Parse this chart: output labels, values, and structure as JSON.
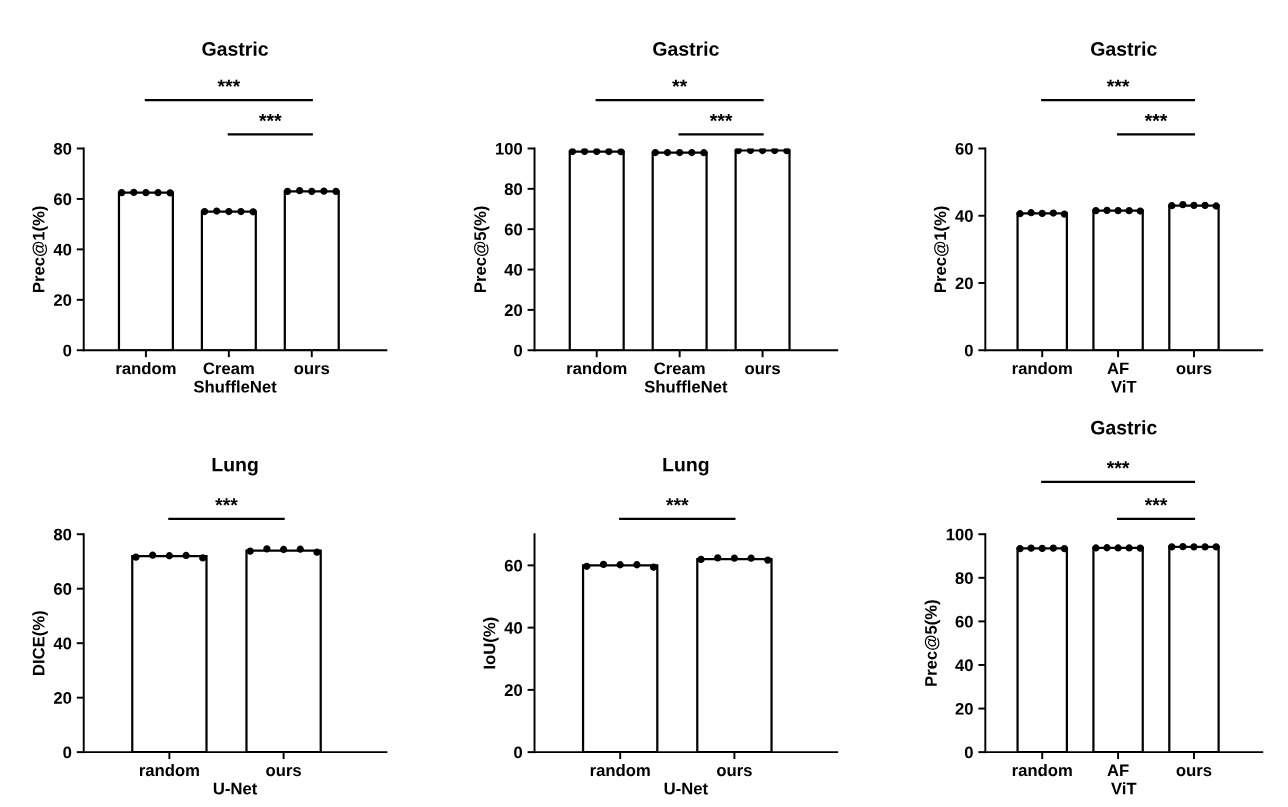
{
  "chart_data": [
    {
      "type": "bar",
      "title": "Gastric",
      "xlabel": "ShuffleNet",
      "ylabel": "Prec@1(%)",
      "categories": [
        "random",
        "Cream",
        "ours"
      ],
      "ylim": [
        0,
        80
      ],
      "yticks": [
        0,
        20,
        40,
        60,
        80
      ],
      "marker": "circle",
      "annotations": [
        "***",
        "***"
      ],
      "series": [
        {
          "color": "#ffffff",
          "values": [
            62.5,
            55,
            63
          ]
        },
        {
          "type": "scatter",
          "color": "#000000",
          "x": [
            "random",
            "random",
            "random",
            "random",
            "random",
            "Cream",
            "Cream",
            "Cream",
            "Cream",
            "Cream",
            "ours",
            "ours",
            "ours",
            "ours",
            "ours"
          ],
          "values": [
            62.5,
            62.6,
            62.5,
            62.5,
            62.4,
            55,
            55.2,
            55,
            55,
            54.9,
            63,
            63.3,
            63,
            63.1,
            63
          ]
        }
      ]
    },
    {
      "type": "bar",
      "title": "Gastric",
      "xlabel": "ShuffleNet",
      "ylabel": "Prec@5(%)",
      "categories": [
        "random",
        "Cream",
        "ours"
      ],
      "ylim": [
        0,
        100
      ],
      "yticks": [
        0,
        20,
        40,
        60,
        80,
        100
      ],
      "marker": "circle",
      "annotations": [
        "**",
        "***"
      ],
      "series": [
        {
          "color": "#ffffff",
          "values": [
            98.5,
            98,
            99
          ]
        },
        {
          "type": "scatter",
          "color": "#000000",
          "x": [
            "random",
            "random",
            "random",
            "random",
            "random",
            "Cream",
            "Cream",
            "Cream",
            "Cream",
            "Cream",
            "ours",
            "ours",
            "ours",
            "ours",
            "ours"
          ],
          "values": [
            98.5,
            98.6,
            98.5,
            98.5,
            98.4,
            98,
            98,
            98,
            98,
            97.9,
            99,
            99.1,
            99,
            99,
            98.9
          ]
        }
      ]
    },
    {
      "type": "bar",
      "title": "Gastric",
      "xlabel": "ViT",
      "ylabel": "Prec@1(%)",
      "categories": [
        "random",
        "AF",
        "ours"
      ],
      "ylim": [
        0,
        60
      ],
      "yticks": [
        0,
        20,
        40,
        60
      ],
      "marker": "circle",
      "annotations": [
        "***",
        "***"
      ],
      "series": [
        {
          "color": "#ffffff",
          "values": [
            40.7,
            41.5,
            43
          ]
        },
        {
          "type": "scatter",
          "color": "#000000",
          "x": [
            "random",
            "random",
            "random",
            "random",
            "random",
            "AF",
            "AF",
            "AF",
            "AF",
            "AF",
            "ours",
            "ours",
            "ours",
            "ours",
            "ours"
          ],
          "values": [
            40.6,
            40.9,
            40.7,
            40.8,
            40.5,
            41.5,
            41.6,
            41.5,
            41.5,
            41.4,
            43,
            43.3,
            43.1,
            43.1,
            42.9
          ]
        }
      ]
    },
    {
      "type": "bar",
      "title": "Lung",
      "xlabel": "U-Net",
      "ylabel": "DICE(%)",
      "categories": [
        "random",
        "ours"
      ],
      "ylim": [
        0,
        80
      ],
      "yticks": [
        0,
        20,
        40,
        60,
        80
      ],
      "marker": "circle",
      "annotations": [
        "***"
      ],
      "series": [
        {
          "color": "#ffffff",
          "values": [
            72,
            74
          ]
        },
        {
          "type": "scatter",
          "color": "#000000",
          "x": [
            "random",
            "random",
            "random",
            "random",
            "random",
            "ours",
            "ours",
            "ours",
            "ours",
            "ours"
          ],
          "values": [
            71.6,
            72.3,
            72.1,
            72.2,
            71.3,
            73.8,
            74.6,
            74.4,
            74.5,
            73.4
          ]
        }
      ]
    },
    {
      "type": "bar",
      "title": "Lung",
      "xlabel": "U-Net",
      "ylabel": "IoU(%)",
      "categories": [
        "random",
        "ours"
      ],
      "ylim": [
        0,
        70
      ],
      "yticks": [
        0,
        20,
        40,
        60
      ],
      "marker": "circle",
      "annotations": [
        "***"
      ],
      "series": [
        {
          "color": "#ffffff",
          "values": [
            60,
            62
          ]
        },
        {
          "type": "scatter",
          "color": "#000000",
          "x": [
            "random",
            "random",
            "random",
            "random",
            "random",
            "ours",
            "ours",
            "ours",
            "ours",
            "ours"
          ],
          "values": [
            59.7,
            60.3,
            60.2,
            60.2,
            59.4,
            61.9,
            62.4,
            62.3,
            62.3,
            61.7
          ]
        }
      ]
    },
    {
      "type": "bar",
      "title": "Gastric",
      "xlabel": "ViT",
      "ylabel": "Prec@5(%)",
      "categories": [
        "random",
        "AF",
        "ours"
      ],
      "ylim": [
        0,
        100
      ],
      "yticks": [
        0,
        20,
        40,
        60,
        80,
        100
      ],
      "marker": "circle",
      "annotations": [
        "***",
        "***"
      ],
      "series": [
        {
          "color": "#ffffff",
          "values": [
            93.5,
            93.7,
            94.2
          ]
        },
        {
          "type": "scatter",
          "color": "#000000",
          "x": [
            "random",
            "random",
            "random",
            "random",
            "random",
            "AF",
            "AF",
            "AF",
            "AF",
            "AF",
            "ours",
            "ours",
            "ours",
            "ours",
            "ours"
          ],
          "values": [
            93.4,
            93.6,
            93.5,
            93.6,
            93.4,
            93.7,
            93.8,
            93.7,
            93.7,
            93.6,
            94.2,
            94.3,
            94.2,
            94.2,
            94.2
          ]
        }
      ]
    }
  ]
}
